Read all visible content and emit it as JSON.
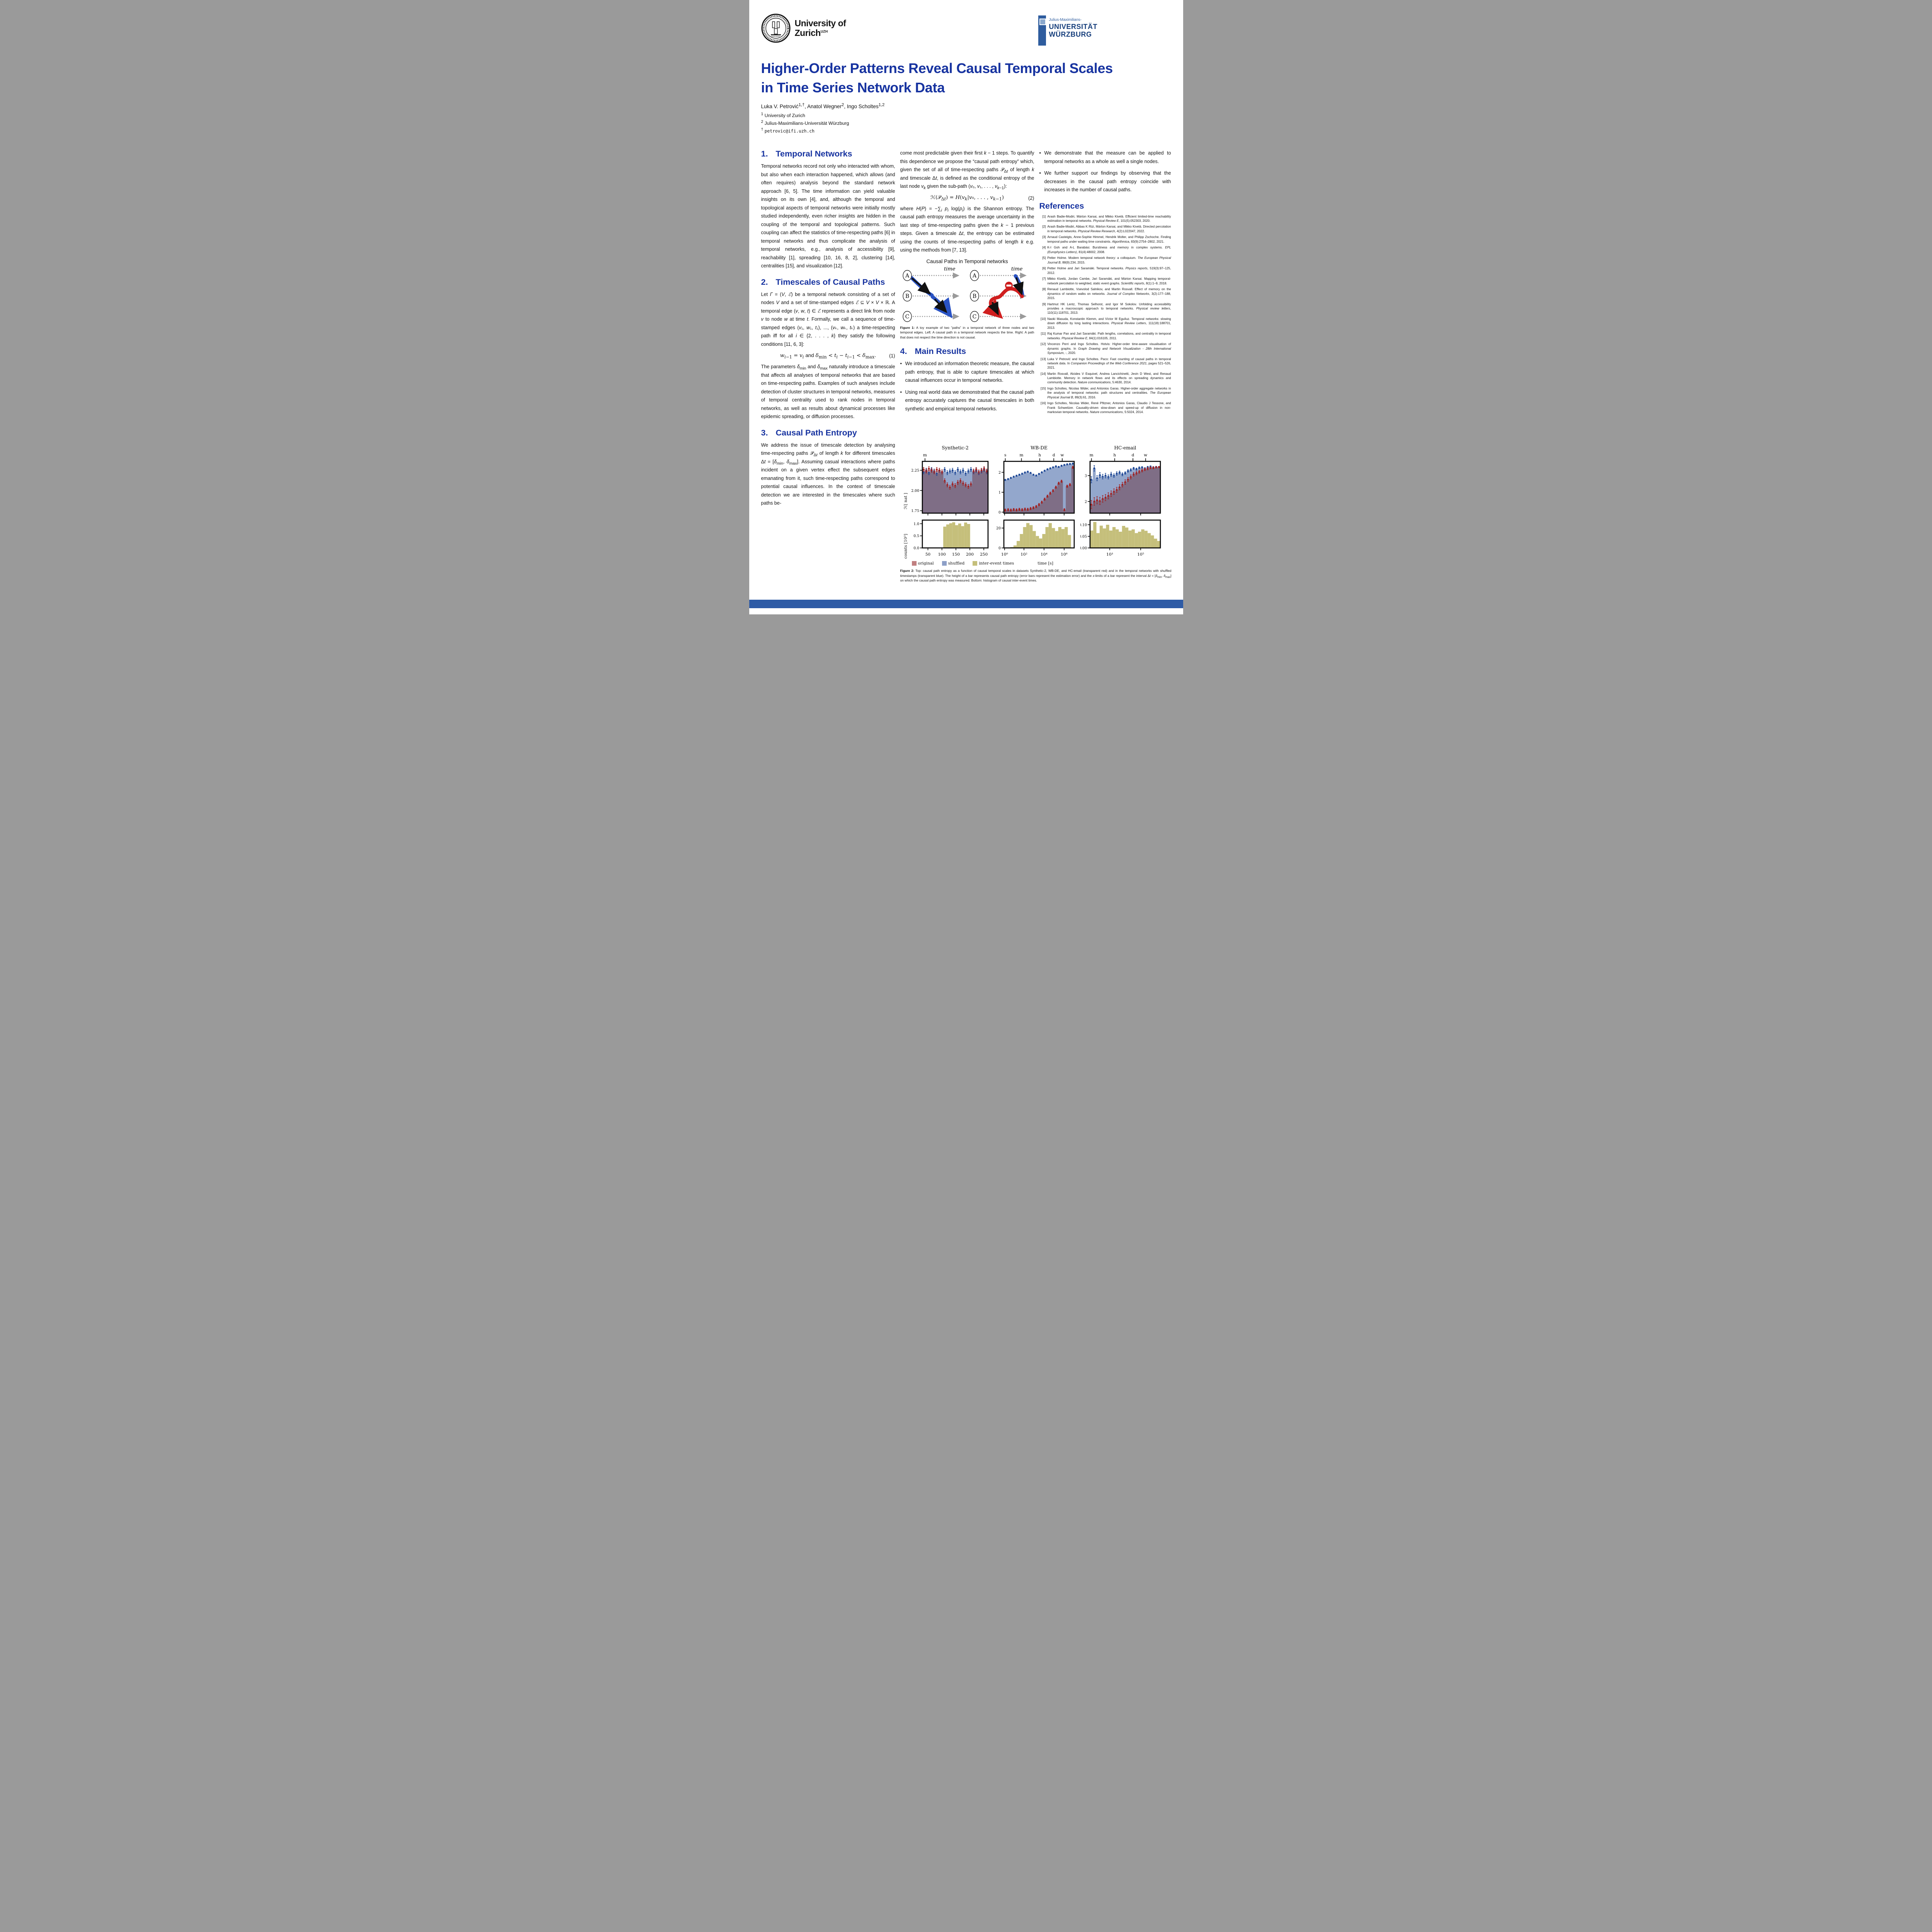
{
  "header": {
    "uzh": {
      "line1": "University of",
      "line2": "Zurich",
      "sup": "UZH"
    },
    "jmu": {
      "line1": "Julius-Maximilians-",
      "line2": "UNIVERSITÄT",
      "line3": "WÜRZBURG"
    }
  },
  "title_line1": "Higher-Order Patterns Reveal Causal Temporal Scales",
  "title_line2": "in Time Series Network Data",
  "authors_html": "Luka V. Petrović<sup>1,†</sup>, Anatol Wegner<sup>2</sup>, Ingo Scholtes<sup>1,2</sup>",
  "affil1_html": "<sup>1</sup> University of Zurich",
  "affil2_html": "<sup>2</sup> Julius-Maximilians-Universität Würzburg",
  "email_html": "<sup>†</sup> <span class=\"mono\">petrovic@ifi.uzh.ch</span>",
  "sections": {
    "s1": {
      "num": "1.",
      "title": "Temporal Networks",
      "body_html": "Temporal networks record not only who interacted with whom, but also when each interaction happened, which allows (and often requires) analysis beyond the standard network approach [6, 5].  The time information can yield valuable insights on its own [4], and, although the temporal and topological aspects of temporal networks were initially mostly studied independently, even richer insights are hidden in the coupling of the temporal and topological patterns.  Such coupling can affect the statistics of time-respecting paths [6] in temporal networks and thus complicate the analysis of temporal networks, e.g., analysis of accessibility [9], reachability [1], spreading [10, 16, 8, 2], clustering [14], centralities [15], and visualization [12]."
    },
    "s2": {
      "num": "2.",
      "title": "Timescales of Causal Paths",
      "p1_html": "Let <i>Γ</i> = (<i>V</i>, <i>ℰ</i>) be a temporal network consisting of a set of nodes <i>V</i> and a set of time-stamped edges <i>ℰ</i> ⊆ <i>V</i> × <i>V</i> × ℝ.  A temporal edge (<i>v</i>, <i>w</i>, <i>t</i>) ∈ <i>ℰ</i> represents a direct link from node <i>v</i> to node <i>w</i> at time <i>t</i>. Formally, we call a sequence of time-stamped edges (<i>v</i>₁, <i>w</i>₁, <i>t</i>₁), ..., (<i>v</i>ₖ, <i>w</i>ₖ, <i>t</i>ₖ) a time-respecting path iff for all <i>i</i> ∈ {2, . . . , <i>k</i>} they satisfy the following conditions [11, 6, 3]:",
      "eq_html": "<i>w</i><sub><i>i</i>−1</sub> = <i>v</i><sub><i>i</i></sub> <span style=\"font-family:'Liberation Sans',sans-serif\">and</span> <i>δ</i><sub>min</sub> &lt; <i>t</i><sub><i>i</i></sub> − <i>t</i><sub><i>i</i>−1</sub> &lt; <i>δ</i><sub>max</sub>.",
      "eq_num": "(1)",
      "p2_html": "The parameters <i>δ</i><sub>min</sub> and <i>δ</i><sub>max</sub> naturally introduce a timescale that affects all analyses of temporal networks that are based on time-respecting paths.  Examples of such analyses include detection of cluster structures in temporal networks, measures of temporal centrality used to rank nodes in temporal networks, as well as results about dynamical processes like epidemic spreading, or diffusion processes."
    },
    "s3": {
      "num": "3.",
      "title": "Causal Path Entropy",
      "body_html": "We address the issue of timescale detection by analysing time-respecting paths 𝒫<sub>Δ<i>t</i></sub> of length <i>k</i> for different timescales Δ<i>t</i> = [<i>δ</i><sub>min</sub>, <i>δ</i><sub>max</sub>].  Assuming casual interactions where paths incident on a given vertex effect the subsequent edges emanating from it, such time-respecting paths correspond to potential causal influences.  In the context of timescale detection we are interested in the timescales where such paths be-"
    },
    "col2": {
      "p1_html": "come most predictable given their first <i>k</i> − 1 steps.  To quantify this dependence we propose the “causal path entropy” which, given the set of all of time-respecting paths 𝒫<sub>Δ<i>t</i></sub> of length <i>k</i> and timescale Δ<i>t</i>, is defined as the conditional entropy of the last node <i>v</i><sub><i>k</i></sub> given the sub-path (<i>v</i>₀, <i>v</i>₁, . . . , <i>v</i><sub><i>k</i>−1</sub>):",
      "eq_html": "ℋ(𝒫<sub>Δ<i>t</i></sub>) = <i>H</i>(<i>v</i><sub><i>k</i></sub>|<i>v</i>₀, . . . , <i>v</i><sub><i>k</i>−1</sub>)",
      "eq_num": "(2)",
      "p2_html": "where <i>H</i>(<i>P</i>) = −∑<sub><i>i</i></sub> <i>p</i><sub><i>i</i></sub> log(<i>p</i><sub><i>i</i></sub>) is the Shannon entropy. The causal path entropy measures the average uncertainty in the last step of time-respecting paths given the <i>k</i> − 1 previous steps.  Given a timescale Δ<i>t</i>, the entropy can be estimated using the counts of time-respecting paths of length <i>k</i> e.g.  using the methods from  [7, 13]."
    },
    "s4": {
      "num": "4.",
      "title": "Main Results",
      "bullets_html": [
        "We introduced an information theoretic measure, the causal path entropy, that is able to capture timescales at which causal influences occur in temporal networks.",
        "Using real world data we demonstrated that the causal path entropy accurately captures the causal timescales in both synthetic and empirical temporal networks."
      ]
    },
    "col3": {
      "bullets_html": [
        "We demonstrate that the measure can be applied to temporal networks as a whole as well a single nodes.",
        "We further support our findings by observing that the decreases in the causal path entropy coincide with increases in the number of causal paths."
      ]
    },
    "refs": {
      "title": "References",
      "items": [
        {
          "num": "[1]",
          "html": "Arash Badie-Modiri, Márton Karsai, and Mikko Kivelä.  Efficient limited-time reachability estimation in temporal networks.  <i>Physical Review E</i>, 101(5):052303, 2020."
        },
        {
          "num": "[2]",
          "html": "Arash Badie-Modiri, Abbas K Rizi, Márton Karsai, and Mikko Kivelä.  Directed percolation in temporal networks.  <i>Physical Review Research</i>, 4(2):L022047, 2022."
        },
        {
          "num": "[3]",
          "html": "Arnaud Casteigts, Anne-Sophie Himmel, Hendrik Molter, and Philipp Zschoche.  Finding temporal paths under waiting time constraints.  <i>Algorithmica</i>, 83(9):2754–2802, 2021."
        },
        {
          "num": "[4]",
          "html": "K-I Goh and A-L Barabási. Burstiness and memory in complex systems. <i>EPL (Europhysics Letters)</i>, 81(4):48002, 2008."
        },
        {
          "num": "[5]",
          "html": "Petter Holme.  Modern temporal network theory: a colloquium.  <i>The European Physical Journal B</i>, 88(9):234, 2015."
        },
        {
          "num": "[6]",
          "html": "Petter Holme and Jari Saramäki.   Temporal networks.   <i>Physics reports</i>, 519(3):97–125, 2012."
        },
        {
          "num": "[7]",
          "html": "Mikko Kivelä, Jordan Cambe, Jari Saramäki, and Márton Karsai.  Mapping temporal-network percolation to weighted, static event graphs.  <i>Scientific reports</i>, 8(1):1–9, 2018."
        },
        {
          "num": "[8]",
          "html": "Renaud Lambiotte, Vsevolod Salnikov, and Martin Rosvall.  Effect of memory on the dynamics of random walks on networks.  <i>Journal of Complex Networks</i>, 3(2):177–188, 2015."
        },
        {
          "num": "[9]",
          "html": "Hartmut HK Lentz, Thomas Selhorst, and Igor M Sokolov.  Unfolding accessibility provides a macroscopic approach to temporal networks.  <i>Physical review letters</i>, 110(11):118701, 2013."
        },
        {
          "num": "[10]",
          "html": "Naoki Masuda, Konstantin Klemm, and Víctor M Eguíluz.  Temporal networks:  slowing down diffusion by long lasting interactions.  <i>Physical Review Letters</i>, 111(18):188701, 2013."
        },
        {
          "num": "[11]",
          "html": "Raj Kumar Pan and Jari Saramäki.  Path lengths, correlations, and centrality in temporal networks. <i>Physical Review E</i>, 84(1):016105, 2011."
        },
        {
          "num": "[12]",
          "html": "Vincenzo Perri and Ingo Scholtes.  Hotvis:  Higher-order time-aware visualisation of dynamic graphs.  In <i>Graph Drawing and Network Visualization - 28th International Symposium</i>, -, 2020."
        },
        {
          "num": "[13]",
          "html": "Luka V Petrović and Ingo Scholtes.  Paco:  Fast counting of causal paths in temporal network data.  In <i>Companion Proceedings of the Web Conference 2021</i>, pages 521–526, 2021."
        },
        {
          "num": "[14]",
          "html": "Martin Rosvall, Alcides V Esquivel, Andrea Lancichinetti, Jevin D West, and Renaud Lambiotte.   Memory in network flows and its effects on spreading dynamics and community detection.  <i>Nature communications</i>, 5:4630, 2014."
        },
        {
          "num": "[15]",
          "html": "Ingo Scholtes, Nicolas Wider, and Antonios Garas.  Higher-order aggregate networks in the analysis of temporal networks:  path structures and centralities.  <i>The European Physical Journal B</i>, 89(3):61, 2016."
        },
        {
          "num": "[16]",
          "html": "Ingo Scholtes, Nicolas Wider, René Pfitzner, Antonios Garas, Claudio J Tessone, and Frank Schweitzer.  Causality-driven slow-down and speed-up of diffusion in non-markovian temporal networks.  <i>Nature communications</i>, 5:5024, 2014."
        }
      ]
    }
  },
  "fig1": {
    "title": "Causal Paths in Temporal networks",
    "node1": "A",
    "node2": "B",
    "node3": "C",
    "time_label": "time",
    "caption_html": "<b>Figure 1:</b> A toy example of two ”paths” in a temporal network of three nodes and two temporal edges.  Left: A causal path in a temporal network respects the time. Right: A path that does not respect the time direction is not causal."
  },
  "fig2_caption_html": "<b>Figure 2:</b> Top: causal path entropy as a function of causal temporal scales in datasets Synthetic-2, WB-DE, and HC-email (transparent red) and in the temporal networks with shuffled timestamps (transparent blue).  The height of a bar represents causal path entropy (error bars represent the estimation error) and the <i>x</i>-limits of a bar represent the interval Δ<i>t</i> = [<i>δ</i><sub>min</sub>, <i>δ</i><sub>max</sub>] on which the causal path entropy was measured.  Bottom:  histogram of causal inter-event times.",
  "chart_data": {
    "type": "bar",
    "ylabel_top": "ℋ[ nat ]",
    "ylabel_bottom": "counts [10³]",
    "xlabel": "time [s]",
    "colors": {
      "original_area": "#dca8a8",
      "shuffled_area": "#93a7cc",
      "original_marker": "#a22020",
      "shuffled_marker": "#1d4795",
      "hist": "#c5bf7b"
    },
    "legend": [
      {
        "label": "original",
        "color": "#c08081"
      },
      {
        "label": "shuffled",
        "color": "#8d9fc7"
      },
      {
        "label": "inter-event times",
        "color": "#c5bf7b"
      }
    ],
    "panels": [
      {
        "title": "Synthetic-2",
        "time_ticks": [
          [
            "m",
            0.04
          ]
        ],
        "entropy": {
          "ylim": [
            1.72,
            2.36
          ],
          "yticks": [
            1.75,
            2.0,
            2.25
          ],
          "ytick_labels": [
            "1.75",
            "2.00",
            "2.25"
          ],
          "shuffled": [
            2.23,
            2.25,
            2.22,
            2.26,
            2.24,
            2.21,
            2.25,
            2.23,
            2.26,
            2.22,
            2.24,
            2.25,
            2.22,
            2.26,
            2.23,
            2.25,
            2.21,
            2.24,
            2.26,
            2.23,
            2.25,
            2.22,
            2.24,
            2.26,
            2.23
          ],
          "original": [
            2.26,
            2.24,
            2.27,
            2.25,
            2.23,
            2.26,
            2.25,
            2.23,
            2.12,
            2.07,
            2.04,
            2.08,
            2.06,
            2.1,
            2.12,
            2.09,
            2.07,
            2.05,
            2.08,
            2.24,
            2.26,
            2.23,
            2.25,
            2.27,
            2.24
          ],
          "err_shuffled": 0.025,
          "err_original": 0.025
        },
        "hist": {
          "ylim": [
            0,
            1.15
          ],
          "yticks": [
            0.0,
            0.5,
            1.0
          ],
          "ytick_labels": [
            "0.0",
            "0.5",
            "1.0"
          ],
          "values": [
            0,
            0,
            0,
            0,
            0,
            0,
            0,
            0.88,
            0.97,
            1.02,
            1.06,
            0.94,
            1.01,
            0.9,
            1.05,
            0.99,
            0,
            0,
            0,
            0,
            0,
            0
          ],
          "xtick_labels": [
            "50",
            "100",
            "150",
            "200",
            "250"
          ],
          "xtick_pos": [
            0.085,
            0.298,
            0.511,
            0.723,
            0.936
          ]
        }
      },
      {
        "title": "WB-DE",
        "time_ticks": [
          [
            "s",
            0.02
          ],
          [
            "m",
            0.25
          ],
          [
            "h",
            0.51
          ],
          [
            "d",
            0.71
          ],
          [
            "w",
            0.83
          ]
        ],
        "entropy": {
          "ylim": [
            -0.05,
            2.55
          ],
          "yticks": [
            0,
            1,
            2
          ],
          "ytick_labels": [
            "0",
            "1",
            "2"
          ],
          "shuffled": [
            1.62,
            1.66,
            1.72,
            1.78,
            1.83,
            1.88,
            1.93,
            1.99,
            2.03,
            1.97,
            1.88,
            1.84,
            1.92,
            2.0,
            2.08,
            2.15,
            2.2,
            2.25,
            2.3,
            2.27,
            2.33,
            2.37,
            2.4,
            2.42,
            2.44
          ],
          "original": [
            0.1,
            0.12,
            0.1,
            0.13,
            0.11,
            0.14,
            0.12,
            0.15,
            0.14,
            0.18,
            0.22,
            0.28,
            0.38,
            0.5,
            0.65,
            0.8,
            0.95,
            1.08,
            1.25,
            1.45,
            1.55,
            0.12,
            1.3,
            1.38,
            2.25
          ],
          "err_shuffled": 0.035,
          "err_original": 0.06
        },
        "hist": {
          "ylim": [
            0,
            28
          ],
          "yticks": [
            0,
            20
          ],
          "ytick_labels": [
            "0",
            "20"
          ],
          "values": [
            0,
            0,
            0.8,
            2.5,
            7,
            14,
            21,
            25,
            23,
            17,
            12,
            9.5,
            14,
            21,
            25,
            20,
            17,
            21,
            19,
            21,
            13,
            0
          ],
          "xtick_labels": [
            "10⁰",
            "10²",
            "10⁴",
            "10⁶"
          ],
          "xtick_pos": [
            0.01,
            0.286,
            0.571,
            0.857
          ]
        }
      },
      {
        "title": "HC-email",
        "time_ticks": [
          [
            "m",
            0.02
          ],
          [
            "h",
            0.35
          ],
          [
            "d",
            0.61
          ],
          [
            "w",
            0.79
          ]
        ],
        "entropy": {
          "ylim": [
            1.55,
            3.55
          ],
          "yticks": [
            2,
            3
          ],
          "ytick_labels": [
            "2",
            "3"
          ],
          "shuffled": [
            2.84,
            3.28,
            2.9,
            3.02,
            2.96,
            3.0,
            2.95,
            3.05,
            3.0,
            3.08,
            3.12,
            3.05,
            3.1,
            3.18,
            3.22,
            3.28,
            3.25,
            3.3,
            3.32,
            3.28,
            3.33,
            3.35,
            3.32,
            3.34,
            3.33
          ],
          "original": [
            1.88,
            2.0,
            2.05,
            2.02,
            2.1,
            2.15,
            2.22,
            2.3,
            2.38,
            2.45,
            2.55,
            2.65,
            2.75,
            2.85,
            2.95,
            3.05,
            3.1,
            3.15,
            3.2,
            3.24,
            3.27,
            3.3,
            3.3,
            3.32,
            3.33
          ],
          "err_shuffled": [
            0.12,
            0.11,
            0.1,
            0.1,
            0.09,
            0.09,
            0.08,
            0.08,
            0.07,
            0.07,
            0.06,
            0.06,
            0.05,
            0.05,
            0.05,
            0.04,
            0.04,
            0.04,
            0.03,
            0.03,
            0.03,
            0.03,
            0.03,
            0.02,
            0.02
          ],
          "err_original": [
            0.16,
            0.15,
            0.14,
            0.14,
            0.13,
            0.12,
            0.12,
            0.11,
            0.11,
            0.1,
            0.1,
            0.09,
            0.09,
            0.08,
            0.08,
            0.07,
            0.07,
            0.06,
            0.06,
            0.05,
            0.05,
            0.04,
            0.04,
            0.03,
            0.03
          ]
        },
        "hist": {
          "ylim": [
            0,
            0.12
          ],
          "yticks": [
            0.0,
            0.05,
            0.1
          ],
          "ytick_labels": [
            "0.00",
            "0.05",
            "0.10"
          ],
          "values": [
            0.075,
            0.112,
            0.064,
            0.096,
            0.084,
            0.1,
            0.075,
            0.09,
            0.08,
            0.07,
            0.095,
            0.088,
            0.075,
            0.08,
            0.064,
            0.07,
            0.08,
            0.074,
            0.064,
            0.054,
            0.04,
            0.03
          ],
          "xtick_labels": [
            "10³",
            "10⁵"
          ],
          "xtick_pos": [
            0.28,
            0.72
          ]
        }
      }
    ]
  }
}
